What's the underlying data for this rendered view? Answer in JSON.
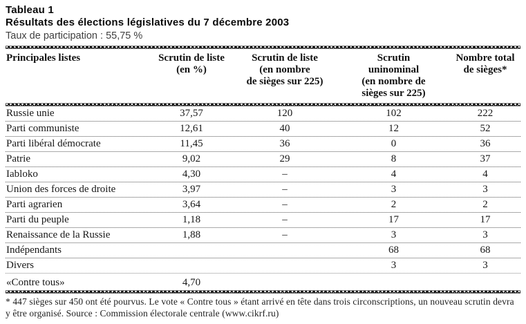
{
  "header": {
    "label": "Tableau 1",
    "title": "Résultats des élections législatives du 7  décembre 2003",
    "participation": "Taux de participation  : 55,75  %"
  },
  "table": {
    "columns": [
      "Principales listes",
      "Scrutin de liste\n(en  %)",
      "Scrutin de liste\n(en nombre\nde sièges sur 225)",
      "Scrutin\nuninominal\n(en nombre de\nsièges sur 225)",
      "Nombre total\nde sièges*"
    ],
    "rows": [
      [
        "Russie unie",
        "37,57",
        "120",
        "102",
        "222"
      ],
      [
        "Parti communiste",
        "12,61",
        "40",
        "12",
        "52"
      ],
      [
        "Parti libéral démocrate",
        "11,45",
        "36",
        "0",
        "36"
      ],
      [
        "Patrie",
        "9,02",
        "29",
        "8",
        "37"
      ],
      [
        "Iabloko",
        "4,30",
        "–",
        "4",
        "4"
      ],
      [
        "Union des forces de droite",
        "3,97",
        "–",
        "3",
        "3"
      ],
      [
        "Parti agrarien",
        "3,64",
        "–",
        "2",
        "2"
      ],
      [
        "Parti du peuple",
        "1,18",
        "–",
        "17",
        "17"
      ],
      [
        "Renaissance de la Russie",
        "1,88",
        "–",
        "3",
        "3"
      ],
      [
        "Indépendants",
        "",
        "",
        "68",
        "68"
      ],
      [
        "Divers",
        "",
        "",
        "3",
        "3"
      ],
      [
        "«Contre tous»",
        "4,70",
        "",
        "",
        ""
      ]
    ]
  },
  "footnote": "* 447 sièges sur 450 ont été pourvus. Le vote «  Contre tous  » étant arrivé en tête dans trois circonscriptions, un nouveau scrutin devra y être organisé.    Source  : Commission électorale centrale (www.cikrf.ru)"
}
